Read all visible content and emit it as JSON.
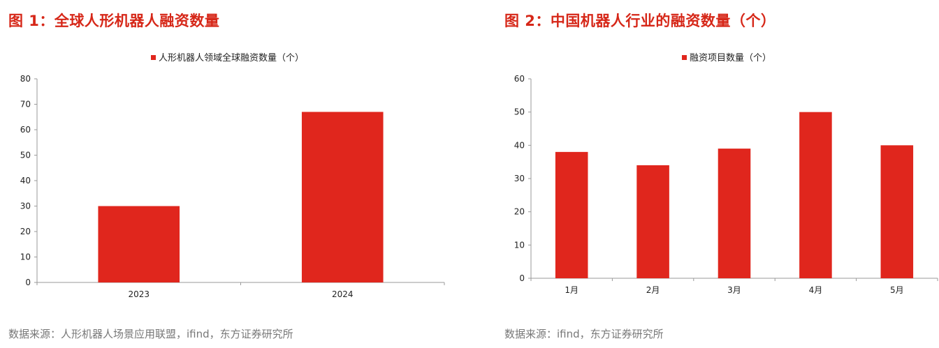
{
  "figures": [
    {
      "title": "图 1：全球人形机器人融资数量",
      "legend": "人形机器人领域全球融资数量（个）",
      "source": "数据来源：人形机器人场景应用联盟，ifind，东方证券研究所",
      "colors": {
        "bar": "#e0261d",
        "title": "#d62718"
      }
    },
    {
      "title": "图 2：中国机器人行业的融资数量（个）",
      "legend": "融资项目数量（个）",
      "source": "数据来源：ifind，东方证券研究所",
      "colors": {
        "bar": "#e0261d",
        "title": "#d62718"
      }
    }
  ],
  "chart_data": [
    {
      "type": "bar",
      "categories": [
        "2023",
        "2024"
      ],
      "series": [
        {
          "name": "人形机器人领域全球融资数量（个）",
          "values": [
            30,
            67
          ]
        }
      ],
      "ylim": [
        0,
        80
      ],
      "yticks": [
        "0",
        "10",
        "20",
        "30",
        "40",
        "50",
        "60",
        "70",
        "80"
      ],
      "grid": false,
      "legend_position": "top-center"
    },
    {
      "type": "bar",
      "categories": [
        "1月",
        "2月",
        "3月",
        "4月",
        "5月"
      ],
      "series": [
        {
          "name": "融资项目数量（个）",
          "values": [
            38,
            34,
            39,
            50,
            40
          ]
        }
      ],
      "ylim": [
        0,
        60
      ],
      "yticks": [
        "0",
        "10",
        "20",
        "30",
        "40",
        "50",
        "60"
      ],
      "grid": false,
      "legend_position": "top-center"
    }
  ]
}
